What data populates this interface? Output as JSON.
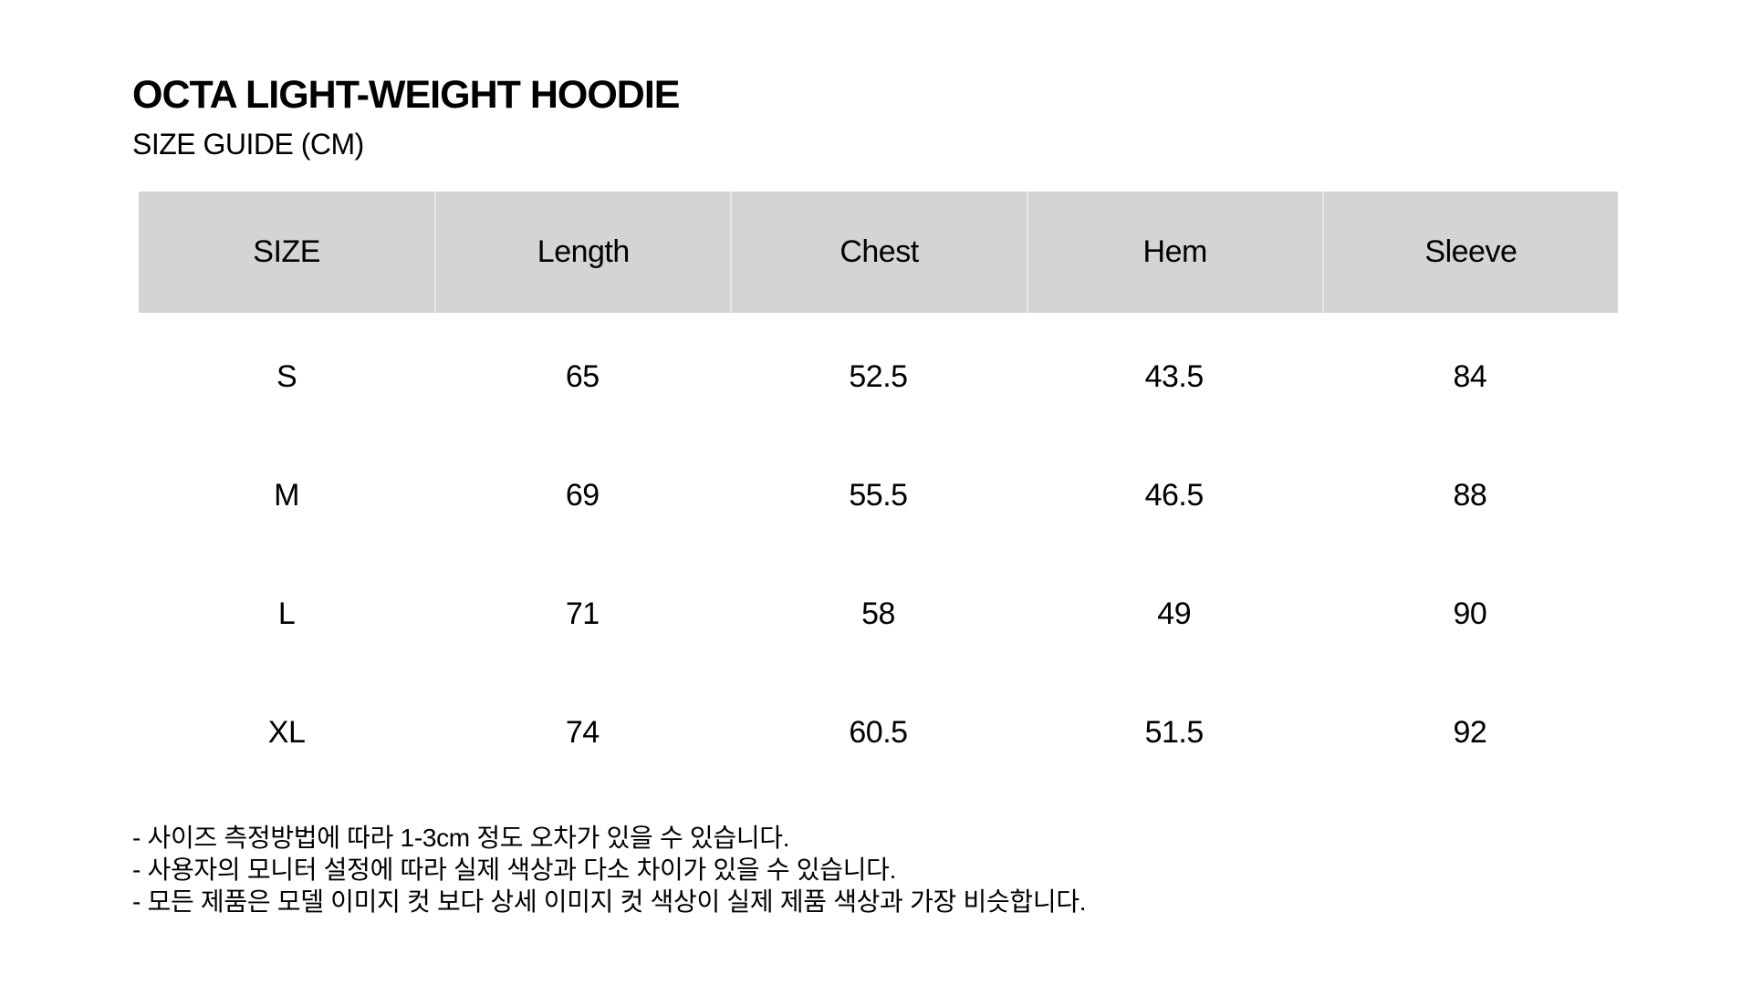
{
  "page": {
    "title": "OCTA LIGHT-WEIGHT HOODIE",
    "subtitle": "SIZE GUIDE (CM)"
  },
  "size_table": {
    "columns": [
      "SIZE",
      "Length",
      "Chest",
      "Hem",
      "Sleeve"
    ],
    "rows": [
      {
        "size": "S",
        "length": "65",
        "chest": "52.5",
        "hem": "43.5",
        "sleeve": "84"
      },
      {
        "size": "M",
        "length": "69",
        "chest": "55.5",
        "hem": "46.5",
        "sleeve": "88"
      },
      {
        "size": "L",
        "length": "71",
        "chest": "58",
        "hem": "49",
        "sleeve": "90"
      },
      {
        "size": "XL",
        "length": "74",
        "chest": "60.5",
        "hem": "51.5",
        "sleeve": "92"
      }
    ]
  },
  "notes": [
    "- 사이즈 측정방법에 따라 1-3cm 정도 오차가 있을 수 있습니다.",
    "- 사용자의 모니터 설정에 따라 실제 색상과 다소 차이가 있을 수 있습니다.",
    "- 모든 제품은 모델 이미지 컷 보다 상세 이미지 컷 색상이 실제 제품 색상과 가장 비슷합니다."
  ],
  "colors": {
    "page_bg": "#ffffff",
    "header_bg": "#d4d4d4",
    "header_divider": "#e8e8e8",
    "text": "#000000"
  }
}
